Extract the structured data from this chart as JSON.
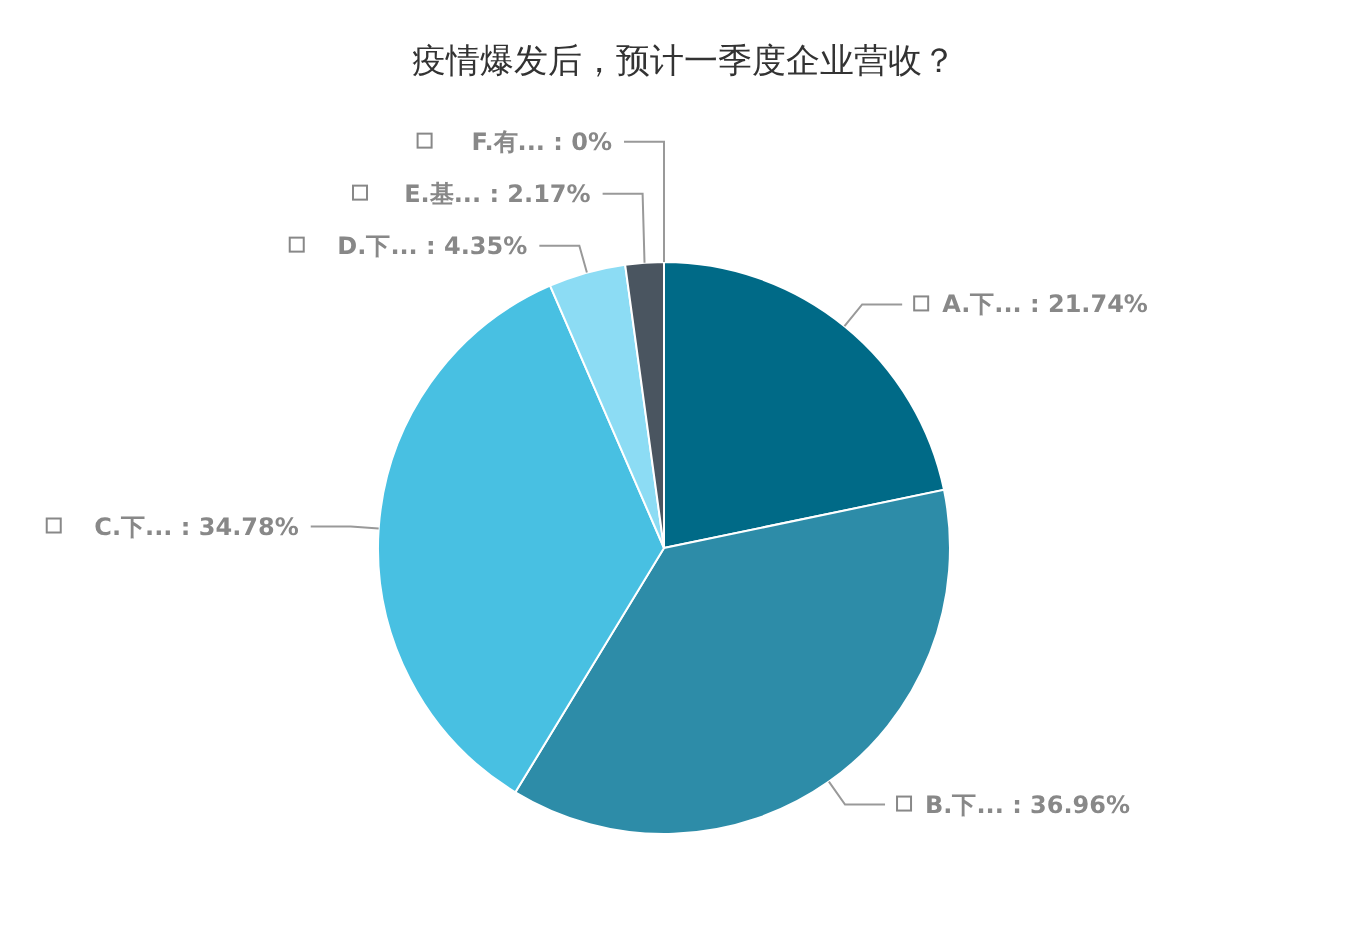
{
  "chart_data": {
    "type": "pie",
    "title": "疫情爆发后，预计一季度企业营收？",
    "categories": [
      "A.下...",
      "B.下...",
      "C.下...",
      "D.下...",
      "E.基...",
      "F.有..."
    ],
    "values": [
      21.74,
      36.96,
      34.78,
      4.35,
      2.17,
      0
    ],
    "value_labels": [
      "21.74%",
      "36.96%",
      "34.78%",
      "4.35%",
      "2.17%",
      "0%"
    ],
    "colors": [
      "#006a87",
      "#2d8ca8",
      "#48c0e2",
      "#8cdcf4",
      "#4a5560",
      "#9aa0a6"
    ]
  }
}
